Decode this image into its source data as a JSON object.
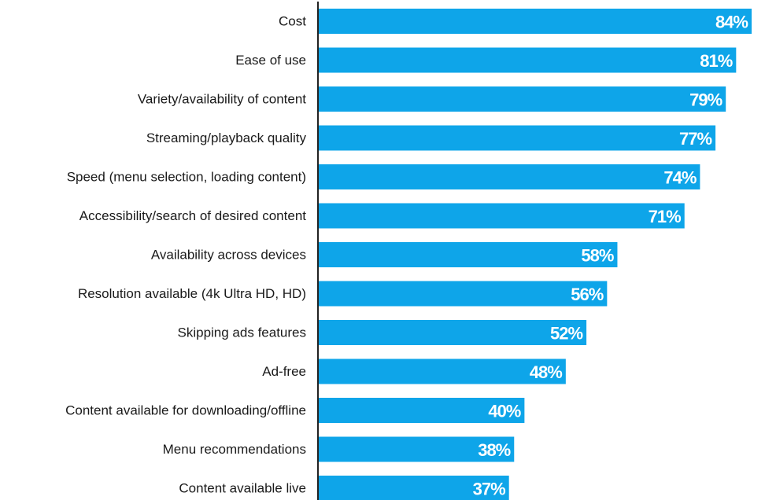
{
  "chart_data": {
    "type": "bar",
    "orientation": "horizontal",
    "categories": [
      "Cost",
      "Ease of use",
      "Variety/availability of content",
      "Streaming/playback quality",
      "Speed (menu selection, loading content)",
      "Accessibility/search of desired content",
      "Availability across devices",
      "Resolution available (4k Ultra HD, HD)",
      "Skipping ads features",
      "Ad-free",
      "Content available for downloading/offline",
      "Menu recommendations",
      "Content available live"
    ],
    "values": [
      84,
      81,
      79,
      77,
      74,
      71,
      58,
      56,
      52,
      48,
      40,
      38,
      37
    ],
    "value_labels": [
      "84%",
      "81%",
      "79%",
      "77%",
      "74%",
      "71%",
      "58%",
      "56%",
      "52%",
      "48%",
      "40%",
      "38%",
      "37%"
    ],
    "xlim": [
      0,
      84
    ],
    "bar_color": "#0ea5e9",
    "axis_color": "#222222",
    "grid": false,
    "legend": "none"
  }
}
